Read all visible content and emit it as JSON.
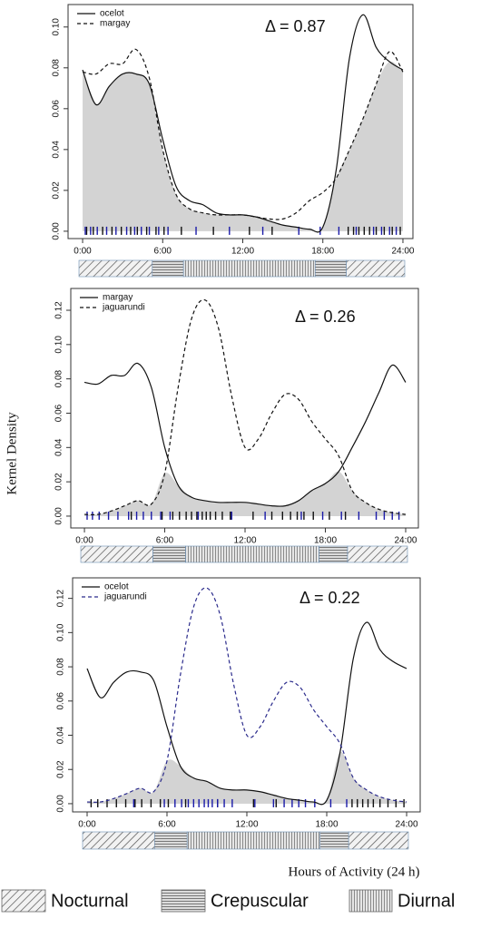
{
  "chart_data": [
    {
      "type": "line",
      "annotation": "Δ = 0.87",
      "legend": "top-left",
      "x": [
        0,
        1,
        2,
        3,
        4,
        5,
        6,
        7,
        8,
        9,
        10,
        11,
        12,
        13,
        14,
        15,
        16,
        17,
        18,
        19,
        20,
        21,
        22,
        23,
        24
      ],
      "series": [
        {
          "name": "ocelot",
          "color": "#111111",
          "dash": false,
          "rug_color": "#111111",
          "values": [
            0.079,
            0.062,
            0.071,
            0.077,
            0.077,
            0.072,
            0.045,
            0.022,
            0.015,
            0.013,
            0.009,
            0.008,
            0.008,
            0.007,
            0.005,
            0.003,
            0.002,
            0.001,
            0.002,
            0.03,
            0.085,
            0.106,
            0.09,
            0.083,
            0.079
          ],
          "observations": [
            0.3,
            0.8,
            1.5,
            2.2,
            2.9,
            3.6,
            4.1,
            4.8,
            5.5,
            6.1,
            7.4,
            9.8,
            12.5,
            14.2,
            19.9,
            20.3,
            20.7,
            21.1,
            21.5,
            22.0,
            22.6,
            23.2,
            23.8
          ]
        },
        {
          "name": "margay",
          "color": "#111111",
          "dash": true,
          "rug_color": "#1a1aa8",
          "values": [
            0.078,
            0.077,
            0.082,
            0.082,
            0.089,
            0.075,
            0.04,
            0.018,
            0.011,
            0.009,
            0.008,
            0.008,
            0.008,
            0.007,
            0.006,
            0.006,
            0.009,
            0.015,
            0.019,
            0.026,
            0.04,
            0.055,
            0.072,
            0.088,
            0.078
          ],
          "observations": [
            0.2,
            0.6,
            1.1,
            1.8,
            2.5,
            3.3,
            3.9,
            4.4,
            5.0,
            5.7,
            6.4,
            8.5,
            11.0,
            13.5,
            16.2,
            17.8,
            19.2,
            20.5,
            21.8,
            22.4,
            23.0,
            23.5
          ]
        }
      ],
      "overlap_color": "#d3d3d3",
      "xlim": [
        -1.09,
        24.75
      ],
      "xticks": [
        {
          "value": 0,
          "label": "0:00"
        },
        {
          "value": 6,
          "label": "6:00"
        },
        {
          "value": 12,
          "label": "12:00"
        },
        {
          "value": 18,
          "label": "18:00"
        },
        {
          "value": 24,
          "label": "24:00"
        }
      ],
      "ylim": [
        -0.0036,
        0.111
      ],
      "yticks": [
        {
          "value": 0,
          "label": "0.00"
        },
        0.02,
        0.04,
        0.06,
        0.08,
        {
          "value": 0.1,
          "label": "0.10"
        }
      ],
      "periods": [
        {
          "from": 0,
          "to": 5.4,
          "kind": 0
        },
        {
          "from": 5.4,
          "to": 7.7,
          "kind": 1
        },
        {
          "from": 7.7,
          "to": 17.4,
          "kind": 2
        },
        {
          "from": 17.4,
          "to": 19.7,
          "kind": 1
        },
        {
          "from": 19.7,
          "to": 24,
          "kind": 0
        }
      ]
    },
    {
      "type": "line",
      "annotation": "Δ  = 0.26",
      "legend": "top-left",
      "x": [
        0,
        1,
        2,
        3,
        4,
        5,
        6,
        7,
        8,
        9,
        10,
        11,
        12,
        13,
        14,
        15,
        16,
        17,
        18,
        19,
        20,
        21,
        22,
        23,
        24
      ],
      "series": [
        {
          "name": "margay",
          "color": "#111111",
          "dash": false,
          "rug_color": "#1a1aa8",
          "values": [
            0.078,
            0.077,
            0.082,
            0.082,
            0.089,
            0.075,
            0.04,
            0.018,
            0.011,
            0.009,
            0.008,
            0.008,
            0.008,
            0.007,
            0.006,
            0.006,
            0.009,
            0.015,
            0.019,
            0.026,
            0.04,
            0.055,
            0.072,
            0.088,
            0.078
          ],
          "observations": [
            0.2,
            0.6,
            1.1,
            1.8,
            2.5,
            3.3,
            3.9,
            4.4,
            5.0,
            5.7,
            6.4,
            8.5,
            11.0,
            13.5,
            16.2,
            17.8,
            19.2,
            20.5,
            21.8,
            22.4,
            23.0,
            23.5
          ]
        },
        {
          "name": "jaguarundi",
          "color": "#111111",
          "dash": true,
          "rug_color": "#111111",
          "values": [
            0.001,
            0.001,
            0.003,
            0.006,
            0.009,
            0.007,
            0.025,
            0.075,
            0.115,
            0.126,
            0.11,
            0.07,
            0.04,
            0.045,
            0.06,
            0.071,
            0.068,
            0.055,
            0.045,
            0.035,
            0.015,
            0.008,
            0.004,
            0.002,
            0.001
          ],
          "observations": [
            3.5,
            5.8,
            6.6,
            7.1,
            7.6,
            8.0,
            8.4,
            8.8,
            9.1,
            9.4,
            9.8,
            10.3,
            10.9,
            12.6,
            14.0,
            14.8,
            15.4,
            15.9,
            16.4,
            17.1,
            18.3,
            19.5
          ]
        }
      ],
      "overlap_color": "#d3d3d3",
      "xlim": [
        -1.02,
        24.95
      ],
      "xticks": [
        {
          "value": 0,
          "label": "0:00"
        },
        {
          "value": 6,
          "label": "6:00"
        },
        {
          "value": 12,
          "label": "12:00"
        },
        {
          "value": 18,
          "label": "18:00"
        },
        {
          "value": 24,
          "label": "24:00"
        }
      ],
      "ylim": [
        -0.0069,
        0.1327
      ],
      "yticks": [
        {
          "value": 0,
          "label": "0.00"
        },
        0.02,
        0.04,
        0.06,
        0.08,
        {
          "value": 0.1,
          "label": "0.10"
        },
        {
          "value": 0.12,
          "label": "0.12"
        }
      ],
      "periods": [
        {
          "from": 0,
          "to": 5.3,
          "kind": 0
        },
        {
          "from": 5.3,
          "to": 7.7,
          "kind": 1
        },
        {
          "from": 7.7,
          "to": 17.5,
          "kind": 2
        },
        {
          "from": 17.5,
          "to": 19.6,
          "kind": 1
        },
        {
          "from": 19.6,
          "to": 24,
          "kind": 0
        }
      ]
    },
    {
      "type": "line",
      "annotation": "Δ = 0.22",
      "legend": "top-left",
      "x": [
        0,
        1,
        2,
        3,
        4,
        5,
        6,
        7,
        8,
        9,
        10,
        11,
        12,
        13,
        14,
        15,
        16,
        17,
        18,
        19,
        20,
        21,
        22,
        23,
        24
      ],
      "series": [
        {
          "name": "ocelot",
          "color": "#111111",
          "dash": false,
          "rug_color": "#111111",
          "values": [
            0.079,
            0.062,
            0.071,
            0.077,
            0.077,
            0.072,
            0.045,
            0.022,
            0.015,
            0.013,
            0.009,
            0.008,
            0.008,
            0.007,
            0.005,
            0.003,
            0.002,
            0.001,
            0.002,
            0.03,
            0.085,
            0.106,
            0.09,
            0.083,
            0.079
          ],
          "observations": [
            0.3,
            0.8,
            1.5,
            2.2,
            2.9,
            3.6,
            4.1,
            4.8,
            5.5,
            6.1,
            7.4,
            9.8,
            12.5,
            14.2,
            19.9,
            20.3,
            20.7,
            21.1,
            21.5,
            22.0,
            22.6,
            23.2,
            23.8
          ]
        },
        {
          "name": "jaguarundi",
          "color": "#2b2b8c",
          "dash": true,
          "rug_color": "#1a1aa8",
          "values": [
            0.001,
            0.001,
            0.003,
            0.006,
            0.009,
            0.007,
            0.025,
            0.075,
            0.115,
            0.126,
            0.11,
            0.07,
            0.04,
            0.045,
            0.06,
            0.071,
            0.068,
            0.055,
            0.045,
            0.035,
            0.015,
            0.008,
            0.004,
            0.002,
            0.001
          ],
          "observations": [
            3.5,
            5.8,
            6.6,
            7.1,
            7.6,
            8.0,
            8.4,
            8.8,
            9.1,
            9.4,
            9.8,
            10.3,
            10.9,
            12.6,
            14.0,
            14.8,
            15.4,
            15.9,
            16.4,
            17.1,
            18.3,
            19.5
          ]
        }
      ],
      "overlap_color": "#d3d3d3",
      "xlim": [
        -1.09,
        25.02
      ],
      "xticks": [
        {
          "value": 0,
          "label": "0:00"
        },
        {
          "value": 6,
          "label": "6:00"
        },
        {
          "value": 12,
          "label": "12:00"
        },
        {
          "value": 18,
          "label": "18:00"
        },
        {
          "value": 24,
          "label": "24:00"
        }
      ],
      "ylim": [
        -0.0048,
        0.132
      ],
      "yticks": [
        {
          "value": 0,
          "label": "0.00"
        },
        0.02,
        0.04,
        0.06,
        0.08,
        {
          "value": 0.1,
          "label": "0.10"
        },
        {
          "value": 0.12,
          "label": "0.12"
        }
      ],
      "periods": [
        {
          "from": 0,
          "to": 5.3,
          "kind": 0
        },
        {
          "from": 5.3,
          "to": 7.7,
          "kind": 1
        },
        {
          "from": 7.7,
          "to": 17.5,
          "kind": 2
        },
        {
          "from": 17.5,
          "to": 19.6,
          "kind": 1
        },
        {
          "from": 19.6,
          "to": 24,
          "kind": 0
        }
      ]
    }
  ],
  "y_label": "Kernel Density",
  "x_label": "Hours of Activity (24 h)",
  "period_legend": [
    "Nocturnal",
    "Crepuscular",
    "Diurnal"
  ]
}
